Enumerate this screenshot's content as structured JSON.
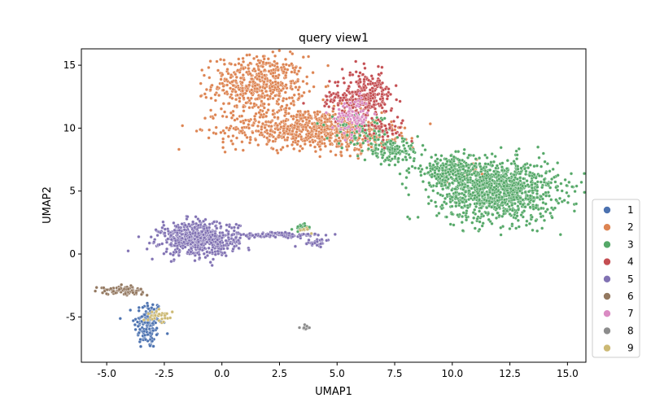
{
  "chart_data": {
    "type": "scatter",
    "title": "query view1",
    "xlabel": "UMAP1",
    "ylabel": "UMAP2",
    "xlim": [
      -6.1,
      15.8
    ],
    "ylim": [
      -8.6,
      16.3
    ],
    "xticks": [
      -5.0,
      -2.5,
      0.0,
      2.5,
      5.0,
      7.5,
      10.0,
      12.5,
      15.0
    ],
    "xtick_labels": [
      "-5.0",
      "-2.5",
      "0.0",
      "2.5",
      "5.0",
      "7.5",
      "10.0",
      "12.5",
      "15.0"
    ],
    "yticks": [
      -5,
      0,
      5,
      10,
      15
    ],
    "ytick_labels": [
      "-5",
      "0",
      "5",
      "10",
      "15"
    ],
    "grid": false,
    "legend_position": "outside-right-bottom",
    "series": [
      {
        "name": "1",
        "color": "#4c72b0",
        "clusters": [
          {
            "cx": -3.2,
            "cy": -5.6,
            "sx": 0.3,
            "sy": 1.0,
            "n": 150
          }
        ]
      },
      {
        "name": "2",
        "color": "#dd8452",
        "clusters": [
          {
            "cx": 1.6,
            "cy": 13.5,
            "sx": 1.0,
            "sy": 1.1,
            "n": 500
          },
          {
            "cx": 3.6,
            "cy": 10.0,
            "sx": 1.7,
            "sy": 0.8,
            "n": 650
          },
          {
            "cx": 6.0,
            "cy": 9.2,
            "sx": 1.0,
            "sy": 0.6,
            "n": 120
          },
          {
            "cx": 10.6,
            "cy": 6.6,
            "sx": 0.6,
            "sy": 0.5,
            "n": 25
          }
        ]
      },
      {
        "name": "3",
        "color": "#55a868",
        "clusters": [
          {
            "cx": 12.0,
            "cy": 5.0,
            "sx": 1.3,
            "sy": 1.2,
            "n": 1100
          },
          {
            "cx": 10.0,
            "cy": 6.6,
            "sx": 0.9,
            "sy": 0.6,
            "n": 250
          },
          {
            "cx": 7.4,
            "cy": 8.2,
            "sx": 0.6,
            "sy": 0.4,
            "n": 140
          },
          {
            "cx": 6.0,
            "cy": 9.8,
            "sx": 0.7,
            "sy": 0.6,
            "n": 80
          },
          {
            "cx": 3.5,
            "cy": 2.1,
            "sx": 0.2,
            "sy": 0.15,
            "n": 25
          }
        ]
      },
      {
        "name": "4",
        "color": "#c44e52",
        "clusters": [
          {
            "cx": 6.3,
            "cy": 12.6,
            "sx": 0.55,
            "sy": 0.9,
            "n": 250
          },
          {
            "cx": 5.2,
            "cy": 12.3,
            "sx": 0.6,
            "sy": 0.4,
            "n": 60
          },
          {
            "cx": 7.2,
            "cy": 10.0,
            "sx": 0.4,
            "sy": 0.5,
            "n": 40
          }
        ]
      },
      {
        "name": "5",
        "color": "#8172b3",
        "clusters": [
          {
            "cx": -1.0,
            "cy": 1.2,
            "sx": 0.85,
            "sy": 0.65,
            "n": 650
          },
          {
            "cx": 2.5,
            "cy": 1.5,
            "sx": 1.0,
            "sy": 0.12,
            "n": 110
          },
          {
            "cx": 4.1,
            "cy": 0.9,
            "sx": 0.35,
            "sy": 0.15,
            "n": 30
          }
        ]
      },
      {
        "name": "6",
        "color": "#937860",
        "clusters": [
          {
            "cx": -4.3,
            "cy": -2.9,
            "sx": 0.45,
            "sy": 0.15,
            "n": 110
          }
        ]
      },
      {
        "name": "7",
        "color": "#da8bc3",
        "clusters": [
          {
            "cx": 5.7,
            "cy": 11.0,
            "sx": 0.4,
            "sy": 0.7,
            "n": 90
          }
        ]
      },
      {
        "name": "8",
        "color": "#8c8c8c",
        "clusters": [
          {
            "cx": 3.65,
            "cy": -5.8,
            "sx": 0.12,
            "sy": 0.12,
            "n": 12
          }
        ]
      },
      {
        "name": "9",
        "color": "#ccb974",
        "clusters": [
          {
            "cx": -2.8,
            "cy": -4.9,
            "sx": 0.3,
            "sy": 0.2,
            "n": 35
          },
          {
            "cx": 3.6,
            "cy": 1.9,
            "sx": 0.15,
            "sy": 0.1,
            "n": 8
          }
        ]
      }
    ]
  }
}
